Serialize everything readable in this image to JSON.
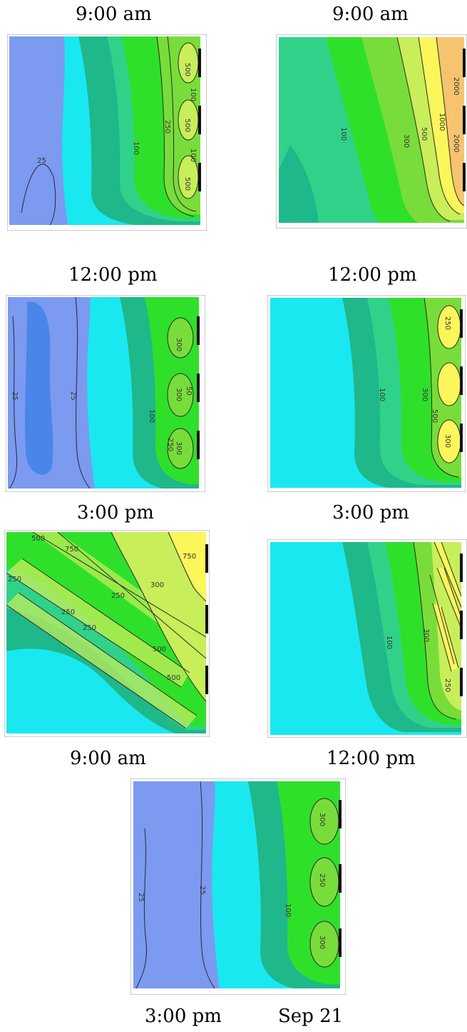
{
  "panels": [
    {
      "time": "9:00 am",
      "labels": [
        "25",
        "100",
        "250",
        "500",
        "500",
        "500",
        "100",
        "100"
      ]
    },
    {
      "time": "9:00 am",
      "labels": [
        "100",
        "300",
        "500",
        "1000",
        "2000",
        "2000"
      ]
    },
    {
      "time": "12:00 pm",
      "labels": [
        "25",
        "25",
        "100",
        "300",
        "300",
        "300",
        "250",
        "50"
      ]
    },
    {
      "time": "12:00 pm",
      "labels": [
        "100",
        "300",
        "500",
        "250",
        "300"
      ]
    },
    {
      "time": "3:00 pm",
      "labels": [
        "500",
        "750",
        "250",
        "250",
        "300",
        "250",
        "250",
        "500",
        "750",
        "500"
      ]
    },
    {
      "time": "3:00 pm",
      "labels": [
        "100",
        "300",
        "250"
      ]
    },
    {
      "time": "9:00 am",
      "labels": [
        "25",
        "25",
        "100",
        "300",
        "250",
        "300"
      ]
    }
  ],
  "captions": {
    "p5": "12:00 pm",
    "p6": "3:00 pm",
    "date": "Sep 21"
  },
  "colors": {
    "blue_dark": "#4a86e8",
    "blue": "#7b9af0",
    "cyan": "#1ae8f0",
    "teal": "#1fb88a",
    "seagreen": "#30d28a",
    "green": "#2fe02a",
    "lightgreen": "#78dd3a",
    "yellowgreen": "#c8ee5a",
    "yellow": "#fbf65a",
    "orange": "#f6c46e"
  }
}
